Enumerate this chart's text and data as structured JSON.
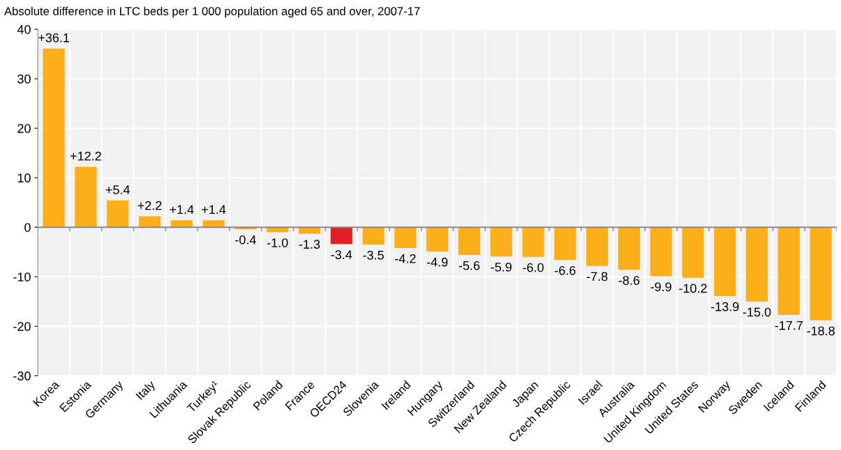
{
  "chart_data": {
    "type": "bar",
    "title": "Absolute difference in LTC beds per 1 000 population aged 65 and over, 2007-17",
    "categories": [
      "Korea",
      "Estonia",
      "Germany",
      "Italy",
      "Lithuania",
      "Turkey¹",
      "Slovak Republic",
      "Poland",
      "France",
      "OECD24",
      "Slovenia",
      "Ireland",
      "Hungary",
      "Switzerland",
      "New Zealand",
      "Japan",
      "Czech Republic",
      "Israel",
      "Australia",
      "United Kingdom",
      "United States",
      "Norway",
      "Sweden",
      "Iceland",
      "Finland"
    ],
    "values": [
      36.1,
      12.2,
      5.4,
      2.2,
      1.4,
      1.4,
      -0.4,
      -1.0,
      -1.3,
      -3.4,
      -3.5,
      -4.2,
      -4.9,
      -5.6,
      -5.9,
      -6.0,
      -6.6,
      -7.8,
      -8.6,
      -9.9,
      -10.2,
      -13.9,
      -15.0,
      -17.7,
      -18.8
    ],
    "value_labels": [
      "+36.1",
      "+12.2",
      "+5.4",
      "+2.2",
      "+1.4",
      "+1.4",
      "-0.4",
      "-1.0",
      "-1.3",
      "-3.4",
      "-3.5",
      "-4.2",
      "-4.9",
      "-5.6",
      "-5.9",
      "-6.0",
      "-6.6",
      "-7.8",
      "-8.6",
      "-9.9",
      "-10.2",
      "-13.9",
      "-15.0",
      "-17.7",
      "-18.8"
    ],
    "colors": [
      "#fbae17",
      "#fbae17",
      "#fbae17",
      "#fbae17",
      "#fbae17",
      "#fbae17",
      "#fbae17",
      "#fbae17",
      "#fbae17",
      "#e11f26",
      "#fbae17",
      "#fbae17",
      "#fbae17",
      "#fbae17",
      "#fbae17",
      "#fbae17",
      "#fbae17",
      "#fbae17",
      "#fbae17",
      "#fbae17",
      "#fbae17",
      "#fbae17",
      "#fbae17",
      "#fbae17",
      "#fbae17"
    ],
    "ylim": [
      -30,
      40
    ],
    "yticks": [
      -30,
      -20,
      -10,
      0,
      10,
      20,
      30,
      40
    ],
    "grid": true
  }
}
